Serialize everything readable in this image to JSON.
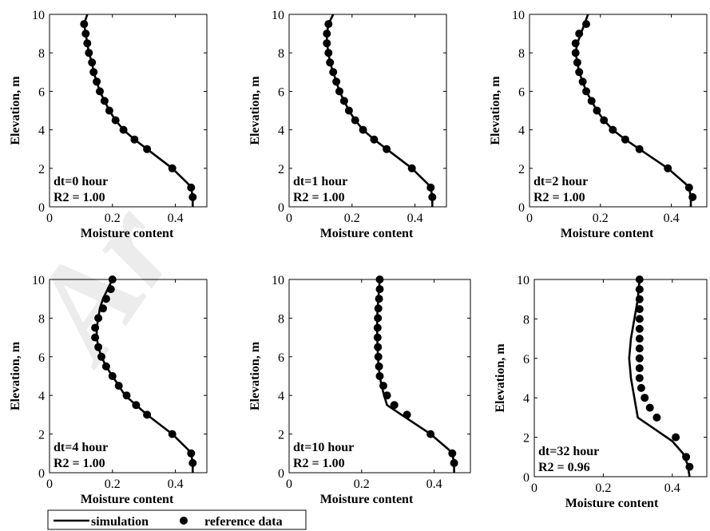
{
  "chart_data": [
    {
      "type": "line",
      "annotation": "dt=0 hour",
      "r2_label": "R2 = 1.00",
      "xlabel": "Moisture content",
      "ylabel": "Elevation, m",
      "xlim": [
        0,
        0.5
      ],
      "ylim": [
        0,
        10
      ],
      "xticks": [
        0,
        0.2,
        0.4
      ],
      "yticks": [
        0,
        2,
        4,
        6,
        8,
        10
      ],
      "series": [
        {
          "name": "simulation",
          "kind": "line",
          "points": [
            [
              0.12,
              10
            ],
            [
              0.11,
              9.5
            ],
            [
              0.115,
              9
            ],
            [
              0.12,
              8.5
            ],
            [
              0.125,
              8
            ],
            [
              0.135,
              7.5
            ],
            [
              0.14,
              7
            ],
            [
              0.15,
              6.5
            ],
            [
              0.16,
              6
            ],
            [
              0.175,
              5.5
            ],
            [
              0.19,
              5
            ],
            [
              0.21,
              4.5
            ],
            [
              0.235,
              4
            ],
            [
              0.27,
              3.5
            ],
            [
              0.31,
              3
            ],
            [
              0.39,
              2
            ],
            [
              0.44,
              1.2
            ],
            [
              0.45,
              1
            ],
            [
              0.455,
              0.5
            ],
            [
              0.455,
              0
            ]
          ]
        },
        {
          "name": "reference data",
          "kind": "scatter",
          "points": [
            [
              0.11,
              9.5
            ],
            [
              0.115,
              9
            ],
            [
              0.12,
              8.5
            ],
            [
              0.125,
              8
            ],
            [
              0.135,
              7.5
            ],
            [
              0.14,
              7
            ],
            [
              0.15,
              6.5
            ],
            [
              0.16,
              6
            ],
            [
              0.175,
              5.5
            ],
            [
              0.19,
              5
            ],
            [
              0.21,
              4.5
            ],
            [
              0.235,
              4
            ],
            [
              0.27,
              3.5
            ],
            [
              0.31,
              3
            ],
            [
              0.39,
              2
            ],
            [
              0.45,
              1
            ],
            [
              0.455,
              0.5
            ]
          ]
        }
      ]
    },
    {
      "type": "line",
      "annotation": "dt=1 hour",
      "r2_label": "R2 = 1.00",
      "xlabel": "Moisture content",
      "ylabel": "Elevation, m",
      "xlim": [
        0,
        0.5
      ],
      "ylim": [
        0,
        10
      ],
      "xticks": [
        0,
        0.2,
        0.4
      ],
      "yticks": [
        0,
        2,
        4,
        6,
        8,
        10
      ],
      "series": [
        {
          "name": "simulation",
          "kind": "line",
          "points": [
            [
              0.14,
              10
            ],
            [
              0.125,
              9.5
            ],
            [
              0.12,
              9
            ],
            [
              0.12,
              8.5
            ],
            [
              0.125,
              8
            ],
            [
              0.13,
              7.5
            ],
            [
              0.14,
              7
            ],
            [
              0.15,
              6.5
            ],
            [
              0.16,
              6
            ],
            [
              0.175,
              5.5
            ],
            [
              0.19,
              5
            ],
            [
              0.21,
              4.5
            ],
            [
              0.235,
              4
            ],
            [
              0.27,
              3.5
            ],
            [
              0.31,
              3
            ],
            [
              0.39,
              2
            ],
            [
              0.44,
              1.2
            ],
            [
              0.45,
              1
            ],
            [
              0.455,
              0.5
            ],
            [
              0.455,
              0
            ]
          ]
        },
        {
          "name": "reference data",
          "kind": "scatter",
          "points": [
            [
              0.125,
              9.5
            ],
            [
              0.12,
              9
            ],
            [
              0.12,
              8.5
            ],
            [
              0.125,
              8
            ],
            [
              0.13,
              7.5
            ],
            [
              0.14,
              7
            ],
            [
              0.15,
              6.5
            ],
            [
              0.16,
              6
            ],
            [
              0.175,
              5.5
            ],
            [
              0.19,
              5
            ],
            [
              0.21,
              4.5
            ],
            [
              0.235,
              4
            ],
            [
              0.27,
              3.5
            ],
            [
              0.31,
              3
            ],
            [
              0.39,
              2
            ],
            [
              0.45,
              1
            ],
            [
              0.455,
              0.5
            ]
          ]
        }
      ]
    },
    {
      "type": "line",
      "annotation": "dt=2 hour",
      "r2_label": "R2 = 1.00",
      "xlabel": "Moisture content",
      "ylabel": "Elevation, m",
      "xlim": [
        0,
        0.5
      ],
      "ylim": [
        0,
        10
      ],
      "xticks": [
        0,
        0.2,
        0.4
      ],
      "yticks": [
        0,
        2,
        4,
        6,
        8,
        10
      ],
      "series": [
        {
          "name": "simulation",
          "kind": "line",
          "points": [
            [
              0.165,
              10
            ],
            [
              0.155,
              9.5
            ],
            [
              0.145,
              9
            ],
            [
              0.135,
              8.5
            ],
            [
              0.13,
              8
            ],
            [
              0.135,
              7.5
            ],
            [
              0.14,
              7
            ],
            [
              0.15,
              6.5
            ],
            [
              0.16,
              6
            ],
            [
              0.175,
              5.5
            ],
            [
              0.19,
              5
            ],
            [
              0.21,
              4.5
            ],
            [
              0.235,
              4
            ],
            [
              0.27,
              3.5
            ],
            [
              0.31,
              3
            ],
            [
              0.39,
              2
            ],
            [
              0.44,
              1.2
            ],
            [
              0.45,
              1
            ],
            [
              0.455,
              0.5
            ],
            [
              0.455,
              0
            ]
          ]
        },
        {
          "name": "reference data",
          "kind": "scatter",
          "points": [
            [
              0.16,
              9.5
            ],
            [
              0.14,
              9
            ],
            [
              0.13,
              8.5
            ],
            [
              0.13,
              8
            ],
            [
              0.135,
              7.5
            ],
            [
              0.14,
              7
            ],
            [
              0.15,
              6.5
            ],
            [
              0.16,
              6
            ],
            [
              0.175,
              5.5
            ],
            [
              0.19,
              5
            ],
            [
              0.21,
              4.5
            ],
            [
              0.235,
              4
            ],
            [
              0.27,
              3.5
            ],
            [
              0.31,
              3
            ],
            [
              0.39,
              2
            ],
            [
              0.45,
              1
            ],
            [
              0.46,
              0.5
            ]
          ]
        }
      ]
    },
    {
      "type": "line",
      "annotation": "dt=4 hour",
      "r2_label": "R2 = 1.00",
      "xlabel": "Moisture content",
      "ylabel": "Elevation, m",
      "xlim": [
        0,
        0.5
      ],
      "ylim": [
        0,
        10
      ],
      "xticks": [
        0,
        0.2,
        0.4
      ],
      "yticks": [
        0,
        2,
        4,
        6,
        8,
        10
      ],
      "series": [
        {
          "name": "simulation",
          "kind": "line",
          "points": [
            [
              0.2,
              10
            ],
            [
              0.185,
              9.5
            ],
            [
              0.17,
              9
            ],
            [
              0.16,
              8.5
            ],
            [
              0.155,
              8
            ],
            [
              0.15,
              7.5
            ],
            [
              0.15,
              7
            ],
            [
              0.155,
              6.5
            ],
            [
              0.165,
              6
            ],
            [
              0.18,
              5.5
            ],
            [
              0.2,
              5
            ],
            [
              0.22,
              4.5
            ],
            [
              0.24,
              4
            ],
            [
              0.275,
              3.5
            ],
            [
              0.31,
              3
            ],
            [
              0.39,
              2
            ],
            [
              0.44,
              1.2
            ],
            [
              0.45,
              1
            ],
            [
              0.455,
              0.5
            ],
            [
              0.455,
              0
            ]
          ]
        },
        {
          "name": "reference data",
          "kind": "scatter",
          "points": [
            [
              0.2,
              10
            ],
            [
              0.195,
              9.5
            ],
            [
              0.18,
              9
            ],
            [
              0.17,
              8.5
            ],
            [
              0.155,
              8
            ],
            [
              0.145,
              7.5
            ],
            [
              0.145,
              7
            ],
            [
              0.155,
              6.5
            ],
            [
              0.165,
              6
            ],
            [
              0.18,
              5.5
            ],
            [
              0.2,
              5
            ],
            [
              0.22,
              4.5
            ],
            [
              0.245,
              4
            ],
            [
              0.275,
              3.5
            ],
            [
              0.31,
              3
            ],
            [
              0.39,
              2
            ],
            [
              0.45,
              1
            ],
            [
              0.455,
              0.5
            ]
          ]
        }
      ]
    },
    {
      "type": "line",
      "annotation": "dt=10 hour",
      "r2_label": "R2 = 1.00",
      "xlabel": "Moisture content",
      "ylabel": "Elevation, m",
      "xlim": [
        0,
        0.5
      ],
      "ylim": [
        0,
        10
      ],
      "xticks": [
        0,
        0.2,
        0.4
      ],
      "yticks": [
        0,
        2,
        4,
        6,
        8,
        10
      ],
      "series": [
        {
          "name": "simulation",
          "kind": "line",
          "points": [
            [
              0.25,
              10
            ],
            [
              0.248,
              9.5
            ],
            [
              0.246,
              9
            ],
            [
              0.244,
              8.5
            ],
            [
              0.243,
              8
            ],
            [
              0.243,
              7.5
            ],
            [
              0.243,
              7
            ],
            [
              0.244,
              6.5
            ],
            [
              0.245,
              6
            ],
            [
              0.247,
              5.5
            ],
            [
              0.25,
              5
            ],
            [
              0.255,
              4.5
            ],
            [
              0.262,
              4
            ],
            [
              0.27,
              3.5
            ],
            [
              0.31,
              3
            ],
            [
              0.39,
              2
            ],
            [
              0.44,
              1.2
            ],
            [
              0.45,
              1
            ],
            [
              0.455,
              0.5
            ],
            [
              0.455,
              0
            ]
          ]
        },
        {
          "name": "reference data",
          "kind": "scatter",
          "points": [
            [
              0.25,
              10
            ],
            [
              0.25,
              9.5
            ],
            [
              0.248,
              9
            ],
            [
              0.246,
              8.5
            ],
            [
              0.245,
              8
            ],
            [
              0.244,
              7.5
            ],
            [
              0.244,
              7
            ],
            [
              0.245,
              6.5
            ],
            [
              0.246,
              6
            ],
            [
              0.248,
              5.5
            ],
            [
              0.25,
              5
            ],
            [
              0.26,
              4.5
            ],
            [
              0.27,
              4
            ],
            [
              0.29,
              3.5
            ],
            [
              0.325,
              3
            ],
            [
              0.39,
              2
            ],
            [
              0.45,
              1
            ],
            [
              0.455,
              0.5
            ]
          ]
        }
      ]
    },
    {
      "type": "line",
      "annotation": "dt=32 hour",
      "r2_label": "R2 = 0.96",
      "xlabel": "Moisture content",
      "ylabel": "Elevation, m",
      "xlim": [
        0,
        0.5
      ],
      "ylim": [
        0,
        10
      ],
      "xticks": [
        0,
        0.2,
        0.4
      ],
      "yticks": [
        0,
        2,
        4,
        6,
        8,
        10
      ],
      "series": [
        {
          "name": "simulation",
          "kind": "line",
          "points": [
            [
              0.305,
              10
            ],
            [
              0.3,
              9
            ],
            [
              0.29,
              8
            ],
            [
              0.28,
              7
            ],
            [
              0.275,
              6
            ],
            [
              0.28,
              5
            ],
            [
              0.29,
              4
            ],
            [
              0.3,
              3
            ],
            [
              0.35,
              2.4
            ],
            [
              0.4,
              1.8
            ],
            [
              0.43,
              1.2
            ],
            [
              0.445,
              0.6
            ],
            [
              0.45,
              0
            ]
          ]
        },
        {
          "name": "reference data",
          "kind": "scatter",
          "points": [
            [
              0.305,
              10
            ],
            [
              0.305,
              9.5
            ],
            [
              0.305,
              9
            ],
            [
              0.305,
              8.5
            ],
            [
              0.305,
              8
            ],
            [
              0.305,
              7.5
            ],
            [
              0.305,
              7
            ],
            [
              0.305,
              6.5
            ],
            [
              0.305,
              6
            ],
            [
              0.305,
              5.5
            ],
            [
              0.305,
              5
            ],
            [
              0.31,
              4.5
            ],
            [
              0.32,
              4
            ],
            [
              0.335,
              3.5
            ],
            [
              0.355,
              3
            ],
            [
              0.41,
              2
            ],
            [
              0.44,
              1
            ],
            [
              0.45,
              0.5
            ]
          ]
        }
      ]
    }
  ],
  "legend": {
    "line_label": "simulation",
    "marker_label": "reference data"
  },
  "watermark": "Ar",
  "colors": {
    "line": "#000000",
    "marker": "#000000",
    "axis": "#000000",
    "background": "#ffffff"
  }
}
